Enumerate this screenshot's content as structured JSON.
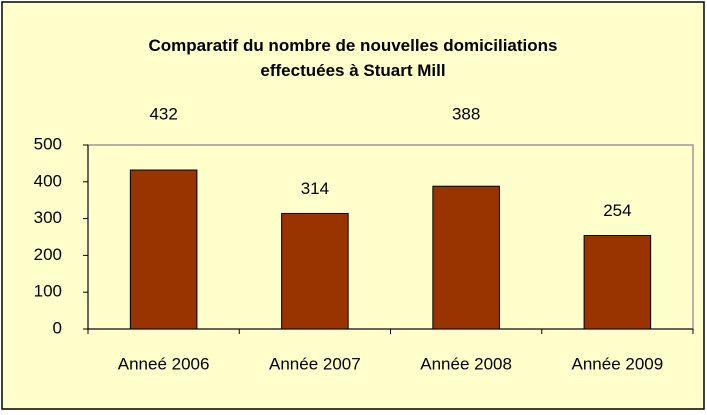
{
  "chart_data": {
    "type": "bar",
    "title": "Comparatif du nombre de nouvelles domiciliations effectuées à Stuart Mill",
    "categories": [
      "Anneé 2006",
      "Année 2007",
      "Année 2008",
      "Année 2009"
    ],
    "values": [
      432,
      314,
      388,
      254
    ],
    "color": "#993300",
    "ylim": [
      0,
      500
    ],
    "yticks": [
      0,
      100,
      200,
      300,
      400,
      500
    ]
  }
}
